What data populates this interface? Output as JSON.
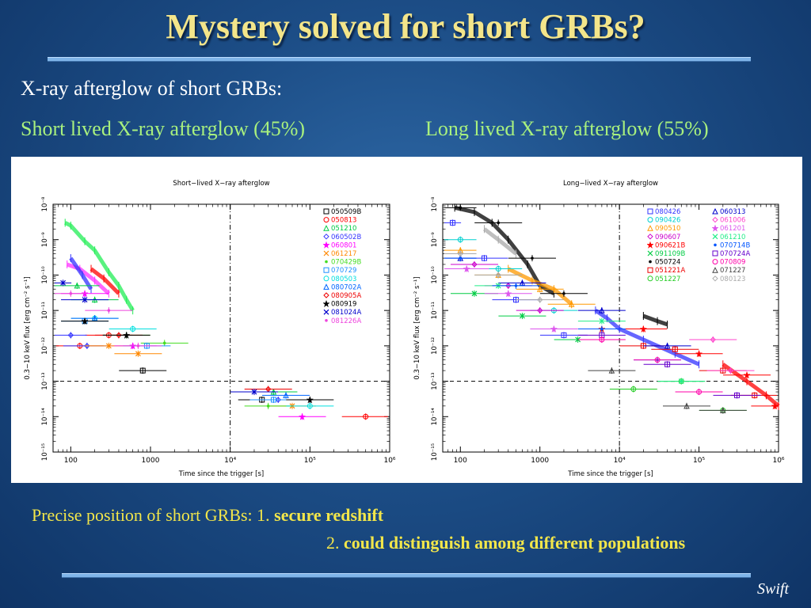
{
  "slide": {
    "title": "Mystery solved for short GRBs?",
    "subtitle": "X-ray afterglow of short GRBs:",
    "left_caption": "Short lived X-ray afterglow (45%)",
    "right_caption": "Long lived X-ray afterglow (55%)",
    "note_line1_prefix": "Precise position of short GRBs: 1.",
    "note_line1_bold": "secure redshift",
    "note_line2_prefix": "2.",
    "note_line2_bold": "could distinguish among different populations",
    "footer": "Swift"
  },
  "colors": {
    "title": "#f3e58a",
    "caption": "#a8f07e",
    "note": "#f2e64a"
  },
  "chart_data": [
    {
      "type": "scatter",
      "title": "Short−lived X−ray afterglow",
      "xlabel": "Time since the trigger [s]",
      "ylabel": "0.3−10 keV flux [erg cm⁻² s⁻¹]",
      "xscale": "log",
      "yscale": "log",
      "xlim": [
        60,
        1000000
      ],
      "ylim": [
        1e-15,
        1e-08
      ],
      "x_ticks": [
        "100",
        "1000",
        "10⁴",
        "10⁵",
        "10⁶"
      ],
      "y_ticks": [
        "10⁻¹⁵",
        "10⁻¹⁴",
        "10⁻¹³",
        "10⁻¹²",
        "10⁻¹¹",
        "10⁻¹⁰",
        "10⁻⁹",
        "10⁻⁸"
      ],
      "vline_x": 10000,
      "hline_y": 1e-13,
      "legend_position": "top-right",
      "series": [
        {
          "name": "050509B",
          "color": "#000000",
          "points": [
            [
              800,
              2e-13
            ],
            [
              25000,
              3e-14
            ]
          ]
        },
        {
          "name": "050813",
          "color": "#ff0000",
          "points": [
            [
              130,
              1e-12
            ],
            [
              300,
              2e-12
            ],
            [
              500000,
              1e-14
            ]
          ]
        },
        {
          "name": "051210",
          "color": "#00cc44",
          "points": [
            [
              120,
              5e-11
            ],
            [
              200,
              2e-11
            ],
            [
              35000,
              5e-14
            ]
          ]
        },
        {
          "name": "060502B",
          "color": "#3333ff",
          "points": [
            [
              100,
              2e-12
            ],
            [
              160,
              1e-12
            ],
            [
              40000,
              3e-14
            ]
          ]
        },
        {
          "name": "060801",
          "color": "#ff00ff",
          "points": [
            [
              150,
              3e-11
            ],
            [
              600,
              1e-12
            ],
            [
              80000,
              1e-14
            ]
          ]
        },
        {
          "name": "061217",
          "color": "#ff8800",
          "points": [
            [
              300,
              1e-12
            ],
            [
              700,
              6e-13
            ],
            [
              60000,
              2e-14
            ]
          ]
        },
        {
          "name": "070429B",
          "color": "#44dd22",
          "points": [
            [
              500,
              2e-12
            ],
            [
              1500,
              1.2e-12
            ],
            [
              30000,
              2e-14
            ]
          ]
        },
        {
          "name": "070729",
          "color": "#1e90ff",
          "points": [
            [
              150,
              5e-12
            ],
            [
              900,
              1e-12
            ],
            [
              35000,
              3e-14
            ]
          ]
        },
        {
          "name": "080503",
          "color": "#00e0e0",
          "points": [
            [
              200,
              6e-12
            ],
            [
              600,
              3e-12
            ],
            [
              100000,
              2e-14
            ]
          ]
        },
        {
          "name": "080702A",
          "color": "#0066ff",
          "points": [
            [
              200,
              6e-12
            ],
            [
              50000,
              4e-14
            ]
          ]
        },
        {
          "name": "080905A",
          "color": "#ee0000",
          "points": [
            [
              400,
              2e-12
            ],
            [
              30000,
              6e-14
            ]
          ]
        },
        {
          "name": "080919",
          "color": "#000000",
          "points": [
            [
              150,
              5e-12
            ],
            [
              500,
              2e-12
            ],
            [
              100000,
              3e-14
            ]
          ]
        },
        {
          "name": "081024A",
          "color": "#0000cc",
          "points": [
            [
              80,
              6e-11
            ],
            [
              150,
              2e-11
            ],
            [
              20000,
              5e-14
            ]
          ]
        },
        {
          "name": "081226A",
          "color": "#ee44dd",
          "points": [
            [
              100,
              3e-11
            ],
            [
              300,
              1e-11
            ],
            [
              700,
              1e-12
            ]
          ]
        }
      ],
      "extra_traces": [
        {
          "color": "#22ee55",
          "points": [
            [
              85,
              3e-09
            ],
            [
              100,
              2.5e-09
            ],
            [
              150,
              9e-10
            ],
            [
              200,
              5e-10
            ],
            [
              300,
              1.2e-10
            ],
            [
              400,
              5e-11
            ],
            [
              500,
              2e-11
            ],
            [
              600,
              1e-11
            ]
          ]
        },
        {
          "color": "#ff33ff",
          "points": [
            [
              90,
              2e-10
            ],
            [
              130,
              1.5e-10
            ],
            [
              200,
              7e-11
            ],
            [
              300,
              3e-11
            ]
          ]
        },
        {
          "color": "#3333ff",
          "points": [
            [
              100,
              3e-10
            ],
            [
              140,
              1e-10
            ],
            [
              180,
              4e-11
            ]
          ]
        },
        {
          "color": "#ff0000",
          "points": [
            [
              180,
              1.5e-10
            ],
            [
              260,
              8e-11
            ],
            [
              400,
              3e-11
            ]
          ]
        }
      ]
    },
    {
      "type": "scatter",
      "title": "Long−lived X−ray afterglow",
      "xlabel": "Time since the trigger [s]",
      "ylabel": "0.3−10 keV flux [erg cm⁻² s⁻¹]",
      "xscale": "log",
      "yscale": "log",
      "xlim": [
        60,
        1000000
      ],
      "ylim": [
        1e-15,
        1e-08
      ],
      "x_ticks": [
        "100",
        "1000",
        "10⁴",
        "10⁵",
        "10⁶"
      ],
      "y_ticks": [
        "10⁻¹⁵",
        "10⁻¹⁴",
        "10⁻¹³",
        "10⁻¹²",
        "10⁻¹¹",
        "10⁻¹⁰",
        "10⁻⁹",
        "10⁻⁸"
      ],
      "vline_x": 10000,
      "hline_y": 1e-13,
      "legend_position": "top-right",
      "series": [
        {
          "name": "080426",
          "color": "#3333ff",
          "points": [
            [
              80,
              3e-09
            ],
            [
              200,
              3e-10
            ],
            [
              500,
              2e-11
            ],
            [
              2000,
              2e-12
            ]
          ]
        },
        {
          "name": "090426",
          "color": "#00d0d0",
          "points": [
            [
              100,
              1e-09
            ],
            [
              300,
              1.5e-10
            ],
            [
              1500,
              1e-11
            ]
          ]
        },
        {
          "name": "090510",
          "color": "#ff9900",
          "points": [
            [
              100,
              5e-10
            ],
            [
              300,
              1e-10
            ],
            [
              1000,
              4e-11
            ],
            [
              2500,
              1.5e-11
            ]
          ]
        },
        {
          "name": "090607",
          "color": "#cc00cc",
          "points": [
            [
              150,
              2e-10
            ],
            [
              400,
              5e-11
            ],
            [
              1000,
              1e-11
            ]
          ]
        },
        {
          "name": "090621B",
          "color": "#ff0000",
          "points": [
            [
              6000,
              3e-12
            ],
            [
              20000,
              3e-12
            ],
            [
              100000,
              6e-13
            ],
            [
              400000,
              1.5e-13
            ],
            [
              900000,
              2e-14
            ]
          ]
        },
        {
          "name": "091109B",
          "color": "#00cc44",
          "points": [
            [
              150,
              3e-11
            ],
            [
              600,
              7e-12
            ],
            [
              3000,
              1.5e-12
            ]
          ]
        },
        {
          "name": "050724",
          "color": "#000000",
          "points": [
            [
              100,
              8e-09
            ],
            [
              300,
              3e-09
            ],
            [
              800,
              3e-10
            ],
            [
              2000,
              3e-11
            ]
          ]
        },
        {
          "name": "051221A",
          "color": "#ee0000",
          "points": [
            [
              20000,
              1e-12
            ],
            [
              50000,
              8e-13
            ],
            [
              200000,
              2e-13
            ],
            [
              500000,
              4e-14
            ]
          ]
        },
        {
          "name": "051227",
          "color": "#22cc22",
          "points": [
            [
              15000,
              6e-14
            ],
            [
              60000,
              1e-13
            ],
            [
              200000,
              1.5e-14
            ]
          ]
        },
        {
          "name": "060313",
          "color": "#0000cc",
          "points": [
            [
              100,
              3e-10
            ],
            [
              600,
              6e-11
            ],
            [
              6000,
              1e-11
            ],
            [
              40000,
              1e-12
            ]
          ]
        },
        {
          "name": "061006",
          "color": "#ff44cc",
          "points": [
            [
              250000,
              2e-13
            ],
            [
              150000,
              1.5e-12
            ]
          ]
        },
        {
          "name": "061201",
          "color": "#dd55ee",
          "points": [
            [
              120,
              1.5e-10
            ],
            [
              400,
              3e-11
            ],
            [
              1500,
              3e-12
            ]
          ]
        },
        {
          "name": "061210",
          "color": "#22ee88",
          "points": [
            [
              300,
              5e-11
            ],
            [
              6000,
              5e-12
            ],
            [
              60000,
              1e-13
            ]
          ]
        },
        {
          "name": "070714B",
          "color": "#0055ff",
          "points": [
            [
              100,
              3e-10
            ],
            [
              500,
              5e-11
            ],
            [
              6000,
              3e-12
            ],
            [
              30000,
              4e-13
            ]
          ]
        },
        {
          "name": "070724A",
          "color": "#6600cc",
          "points": [
            [
              6000,
              2e-12
            ],
            [
              40000,
              3e-13
            ],
            [
              300000,
              4e-14
            ]
          ]
        },
        {
          "name": "070809",
          "color": "#ff00aa",
          "points": [
            [
              6000,
              1.5e-12
            ],
            [
              30000,
              4e-13
            ],
            [
              100000,
              5e-14
            ]
          ]
        },
        {
          "name": "071227",
          "color": "#444444",
          "points": [
            [
              8000,
              2e-13
            ],
            [
              70000,
              2e-14
            ],
            [
              200000,
              1.5e-14
            ]
          ]
        },
        {
          "name": "080123",
          "color": "#aaaaaa",
          "points": [
            [
              100,
              4e-10
            ],
            [
              300,
              1e-10
            ],
            [
              1000,
              2e-11
            ]
          ]
        }
      ],
      "extra_traces": [
        {
          "color": "#000000",
          "points": [
            [
              85,
              8e-09
            ],
            [
              150,
              6e-09
            ],
            [
              250,
              3e-09
            ],
            [
              400,
              1e-09
            ],
            [
              700,
              2e-10
            ],
            [
              1000,
              5e-11
            ],
            [
              1500,
              3e-11
            ]
          ]
        },
        {
          "color": "#ff9900",
          "points": [
            [
              400,
              1.5e-10
            ],
            [
              800,
              7e-11
            ],
            [
              1500,
              4e-11
            ],
            [
              2500,
              1.5e-11
            ]
          ]
        },
        {
          "color": "#aaaaaa",
          "points": [
            [
              200,
              2e-09
            ],
            [
              300,
              1e-09
            ],
            [
              500,
              4e-10
            ]
          ]
        },
        {
          "color": "#3333ff",
          "points": [
            [
              5000,
              1e-11
            ],
            [
              7000,
              6e-12
            ],
            [
              10000,
              3e-12
            ],
            [
              20000,
              1.5e-12
            ],
            [
              50000,
              6e-13
            ],
            [
              100000,
              3e-13
            ]
          ]
        },
        {
          "color": "#000000",
          "points": [
            [
              20000,
              7e-12
            ],
            [
              30000,
              5e-12
            ],
            [
              40000,
              4e-12
            ]
          ]
        },
        {
          "color": "#ff0000",
          "points": [
            [
              200000,
              3e-13
            ],
            [
              400000,
              1e-13
            ],
            [
              700000,
              4e-14
            ],
            [
              1000000,
              2e-14
            ]
          ]
        }
      ]
    }
  ]
}
